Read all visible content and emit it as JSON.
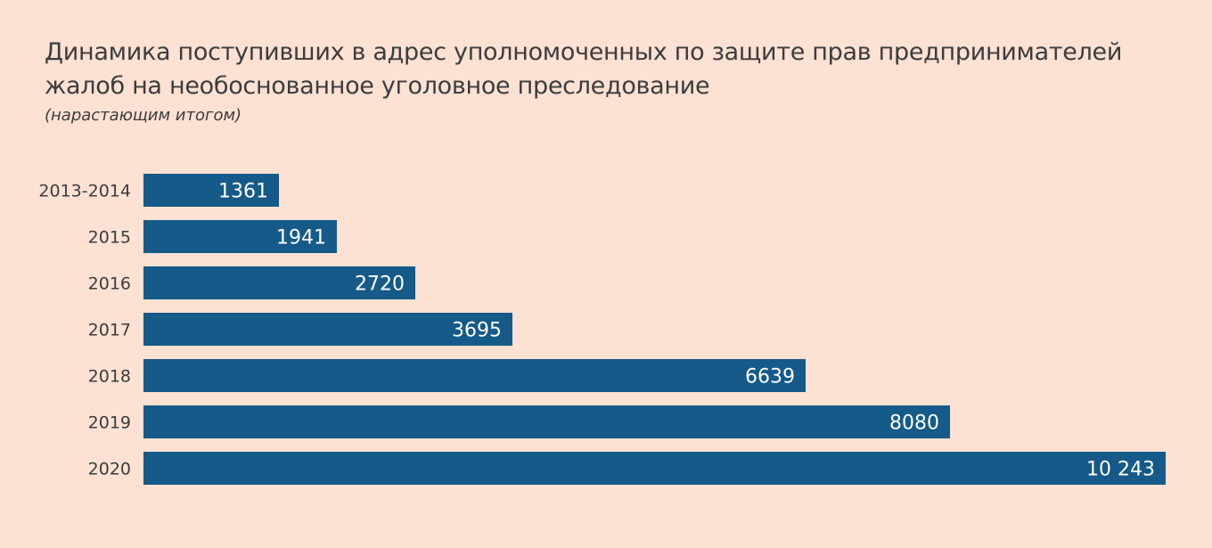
{
  "chart_data": {
    "type": "bar",
    "orientation": "horizontal",
    "title": "Динамика поступивших в адрес уполномоченных по защите прав предпринимателей жалоб на необоснованное уголовное преследование",
    "subtitle": "(нарастающим итогом)",
    "categories": [
      "2013-2014",
      "2015",
      "2016",
      "2017",
      "2018",
      "2019",
      "2020"
    ],
    "values": [
      1361,
      1941,
      2720,
      3695,
      6639,
      8080,
      10243
    ],
    "value_labels": [
      "1361",
      "1941",
      "2720",
      "3695",
      "6639",
      "8080",
      "10 243"
    ],
    "xlim": [
      0,
      10243
    ],
    "grid": false,
    "bar_color": "#155a88",
    "label_color": "#ffffff",
    "tick_label_color": "#3c3c3c"
  },
  "colors": {
    "background": "#fde1d3",
    "bar": "#155a88",
    "text": "#3c3c3c"
  }
}
